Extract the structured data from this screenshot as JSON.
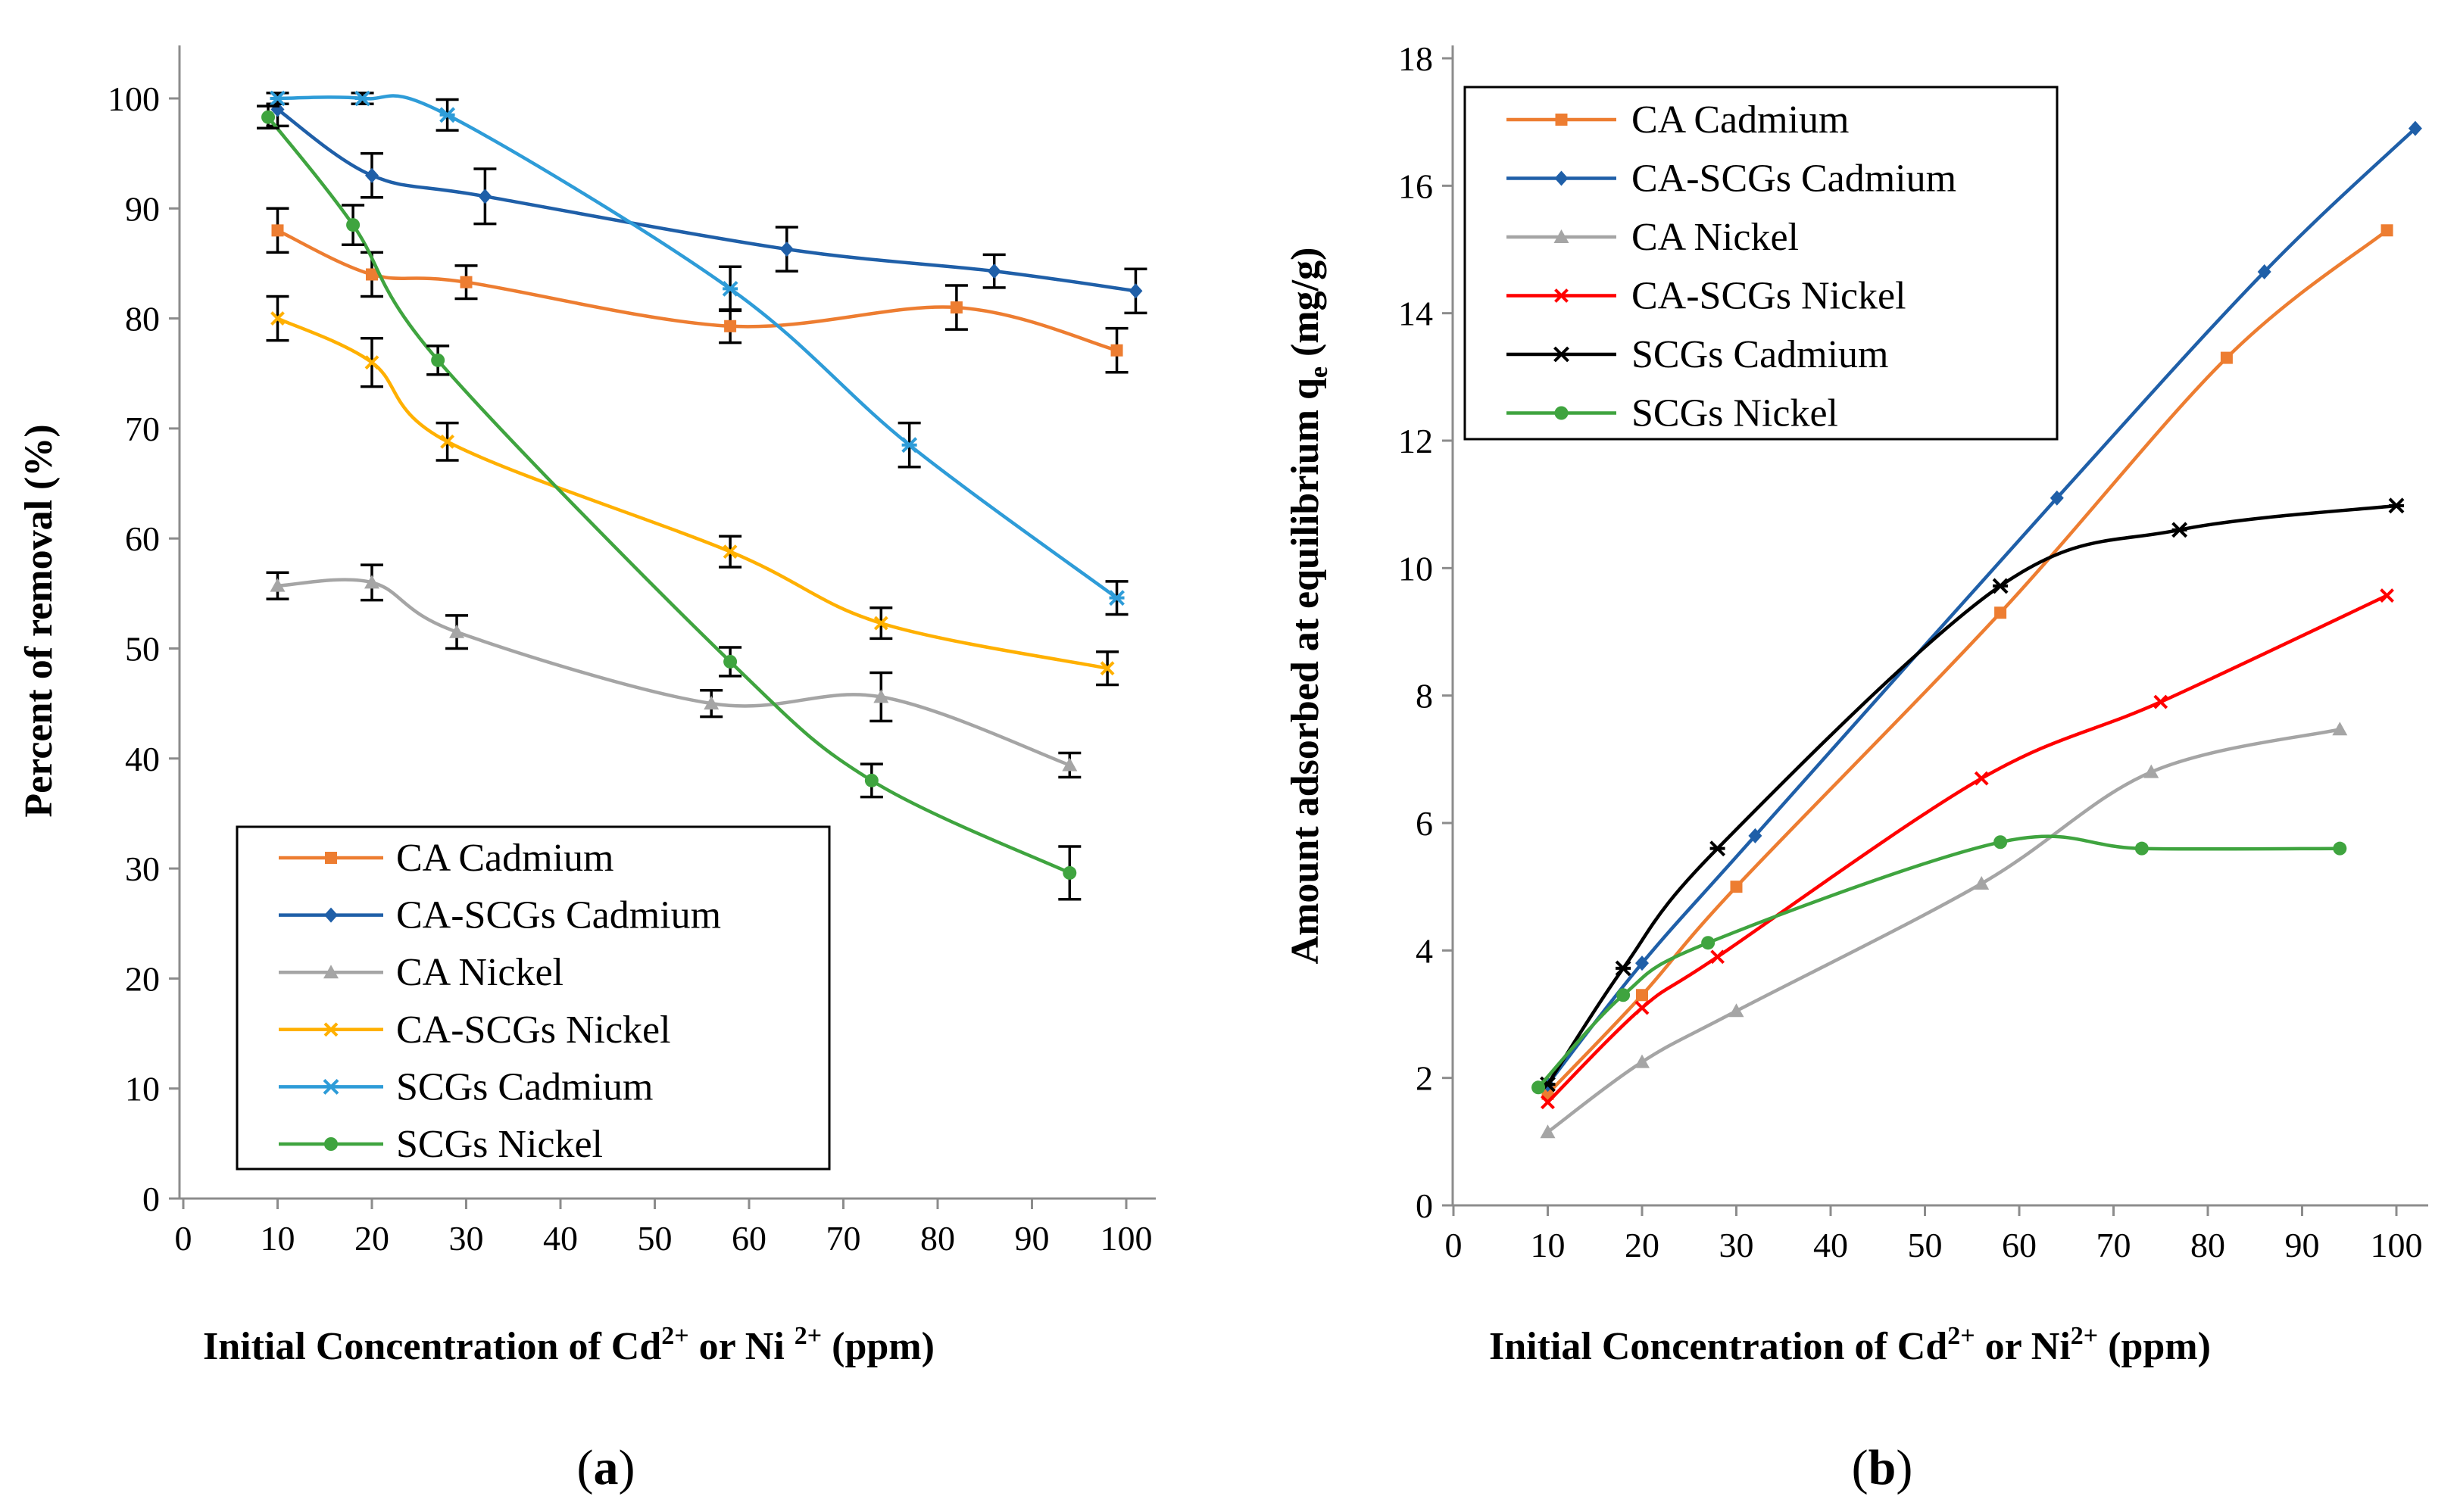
{
  "chart_data": [
    {
      "id": "a",
      "type": "line",
      "panel_label": "a",
      "xlabel_parts": [
        "Initial Concentration of Cd",
        "2+",
        "  or Ni ",
        "2+",
        " (ppm)"
      ],
      "ylabel": "Percent  of  removal (%)",
      "xlim": [
        0,
        105
      ],
      "ylim": [
        0,
        105
      ],
      "xticks": [
        0,
        10,
        20,
        30,
        40,
        50,
        60,
        70,
        80,
        90,
        100
      ],
      "yticks": [
        0,
        10,
        20,
        30,
        40,
        50,
        60,
        70,
        80,
        90,
        100
      ],
      "legend_position": "lower-left",
      "error_bars": true,
      "series": [
        {
          "name": "CA Cadmium",
          "color": "#ED7D31",
          "marker": "square",
          "x": [
            10,
            20,
            30,
            58,
            82,
            99
          ],
          "y": [
            88,
            84,
            83.3,
            79.3,
            81,
            77.1
          ],
          "err": [
            2,
            2,
            1.5,
            1.5,
            2,
            2
          ]
        },
        {
          "name": "CA-SCGs  Cadmium",
          "color": "#1F5FA8",
          "marker": "diamond",
          "x": [
            10,
            20,
            32,
            64,
            86,
            101
          ],
          "y": [
            99,
            93,
            91.1,
            86.3,
            84.3,
            82.5
          ],
          "err": [
            1.5,
            2,
            2.5,
            2,
            1.5,
            2
          ]
        },
        {
          "name": "CA Nickel",
          "color": "#A5A5A5",
          "marker": "triangle",
          "x": [
            10,
            20,
            29,
            56,
            74,
            94
          ],
          "y": [
            55.7,
            56,
            51.5,
            45,
            45.6,
            39.4
          ],
          "err": [
            1.2,
            1.6,
            1.5,
            1.2,
            2.2,
            1.1
          ]
        },
        {
          "name": "CA-SCGs  Nickel",
          "color": "#FFB000",
          "marker": "x",
          "x": [
            10,
            20,
            28,
            58,
            74,
            98
          ],
          "y": [
            80,
            76,
            68.8,
            58.8,
            52.3,
            48.2
          ],
          "err": [
            2,
            2.2,
            1.7,
            1.4,
            1.4,
            1.5
          ]
        },
        {
          "name": "SCGs Cadmium",
          "color": "#2E9CD8",
          "marker": "star",
          "x": [
            10,
            19,
            28,
            58,
            77,
            99
          ],
          "y": [
            100,
            100,
            98.5,
            82.7,
            68.5,
            54.6
          ],
          "err": [
            0.5,
            0.5,
            1.4,
            2,
            2,
            1.5
          ]
        },
        {
          "name": "SCGs  Nickel",
          "color": "#3FA43F",
          "marker": "circle",
          "x": [
            9,
            18,
            27,
            58,
            73,
            94
          ],
          "y": [
            98.3,
            88.5,
            76.2,
            48.8,
            38,
            29.6
          ],
          "err": [
            1,
            1.8,
            1.3,
            1.3,
            1.5,
            2.4
          ]
        }
      ]
    },
    {
      "id": "b",
      "type": "line",
      "panel_label": "b",
      "xlabel_parts": [
        "Initial Concentration of Cd",
        "2+",
        " or Ni",
        "2+",
        "  (ppm)"
      ],
      "ylabel": "Amount  adsorbed  at  equilibrium  q",
      "ylabel_sub": "e",
      "ylabel_unit": " (mg/g)",
      "xlim": [
        0,
        105
      ],
      "ylim": [
        0,
        18
      ],
      "xticks": [
        0,
        10,
        20,
        30,
        40,
        50,
        60,
        70,
        80,
        90,
        100
      ],
      "yticks": [
        0,
        2,
        4,
        6,
        8,
        10,
        12,
        14,
        16,
        18
      ],
      "legend_position": "top-left",
      "error_bars": false,
      "series": [
        {
          "name": "CA Cadmium",
          "color": "#ED7D31",
          "marker": "square",
          "x": [
            10,
            20,
            30,
            58,
            82,
            99
          ],
          "y": [
            1.75,
            3.3,
            5.0,
            9.3,
            13.3,
            15.3
          ]
        },
        {
          "name": "CA-SCGs Cadmium",
          "color": "#1F5FA8",
          "marker": "diamond",
          "x": [
            10,
            20,
            32,
            64,
            86,
            102
          ],
          "y": [
            1.9,
            3.8,
            5.8,
            11.1,
            14.65,
            16.9
          ]
        },
        {
          "name": "CA Nickel",
          "color": "#A5A5A5",
          "marker": "triangle",
          "x": [
            10,
            20,
            30,
            56,
            74,
            94
          ],
          "y": [
            1.15,
            2.25,
            3.05,
            5.05,
            6.8,
            7.47
          ]
        },
        {
          "name": "CA-SCGs Nickel",
          "color": "#FF0000",
          "marker": "x",
          "x": [
            10,
            20,
            28,
            56,
            75,
            99
          ],
          "y": [
            1.62,
            3.1,
            3.9,
            6.7,
            7.9,
            9.57
          ]
        },
        {
          "name": "SCGs Cadmium",
          "color": "#000000",
          "marker": "star",
          "x": [
            10,
            18,
            28,
            58,
            77,
            100
          ],
          "y": [
            1.9,
            3.72,
            5.6,
            9.72,
            10.6,
            10.98
          ]
        },
        {
          "name": "SCGs Nickel",
          "color": "#3FA43F",
          "marker": "circle",
          "x": [
            9,
            18,
            27,
            58,
            73,
            94
          ],
          "y": [
            1.85,
            3.3,
            4.12,
            5.7,
            5.6,
            5.6
          ]
        }
      ]
    }
  ]
}
